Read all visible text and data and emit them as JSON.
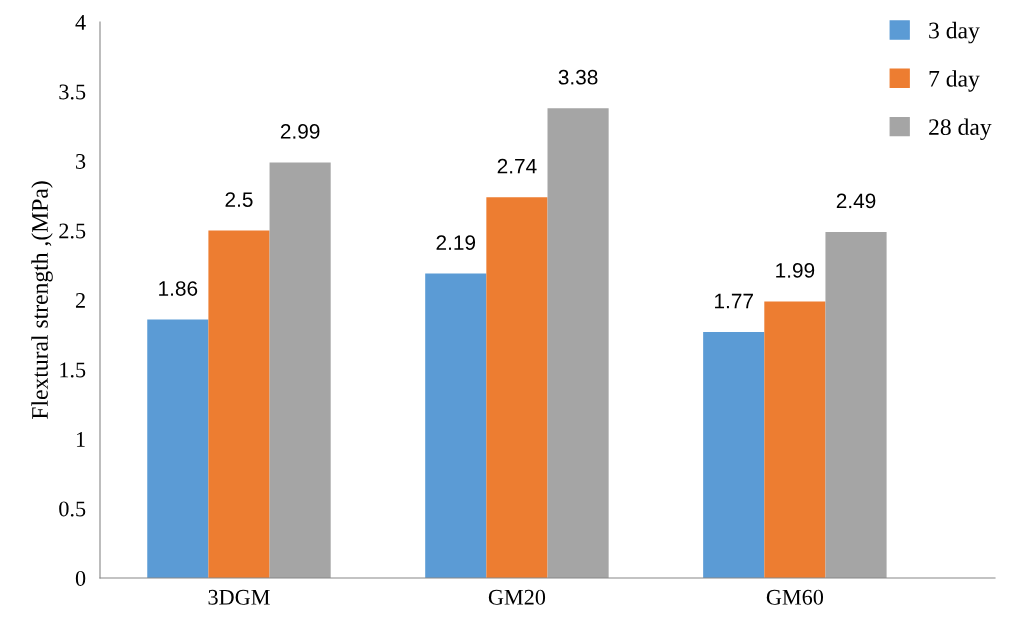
{
  "chart_data": {
    "type": "bar",
    "ylabel": "Flextural strength ,(MPa)",
    "categories": [
      "3DGM",
      "GM20",
      "GM60"
    ],
    "series": [
      {
        "name": "3 day",
        "color": "#5b9bd5",
        "values": [
          1.86,
          2.19,
          1.77
        ]
      },
      {
        "name": "7 day",
        "color": "#ed7d31",
        "values": [
          2.5,
          2.74,
          1.99
        ]
      },
      {
        "name": "28 day",
        "color": "#a5a5a5",
        "values": [
          2.99,
          3.38,
          2.49
        ]
      }
    ],
    "ylim": [
      0,
      4
    ],
    "yticks": [
      0,
      0.5,
      1,
      1.5,
      2,
      2.5,
      3,
      3.5,
      4
    ],
    "grid": false,
    "legend": "top right",
    "data_labels": true
  }
}
